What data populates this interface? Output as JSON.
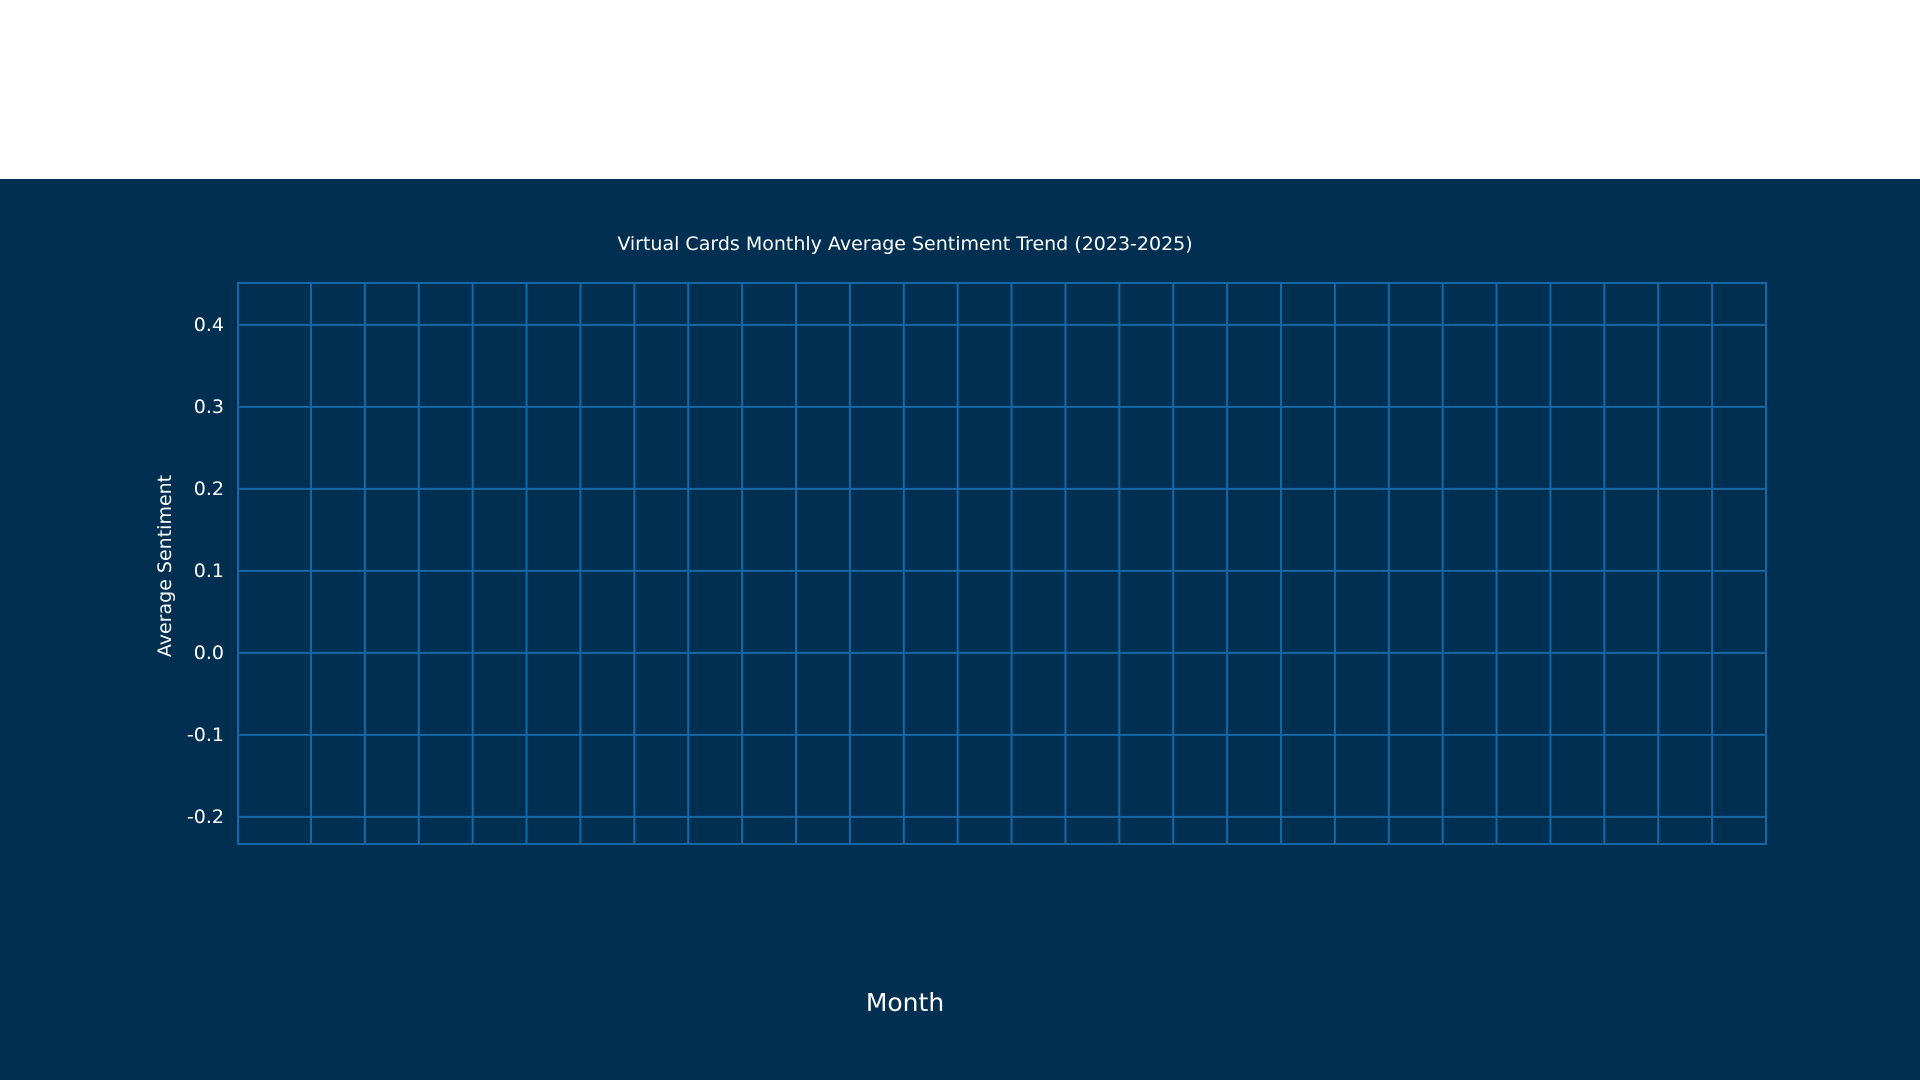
{
  "colors": {
    "background": "#002f52",
    "grid": "#1667a6",
    "text": "#ffffff"
  },
  "chart_data": {
    "type": "line",
    "title": "Virtual Cards Monthly Average Sentiment Trend (2023-2025)",
    "xlabel": "Month",
    "ylabel": "Average Sentiment",
    "ylim": [
      -0.233,
      0.451
    ],
    "yticks": [
      "0.4",
      "0.3",
      "0.2",
      "0.1",
      "0.0",
      "-0.1",
      "-0.2"
    ],
    "ytick_values": [
      0.4,
      0.3,
      0.2,
      0.1,
      0.0,
      -0.1,
      -0.2
    ],
    "grid": true,
    "x_gridline_count": 27,
    "series": []
  }
}
